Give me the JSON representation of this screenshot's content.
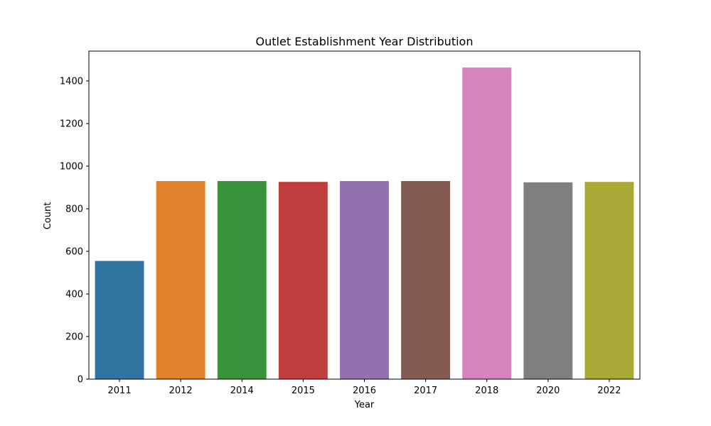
{
  "chart_data": {
    "type": "bar",
    "title": "Outlet Establishment Year Distribution",
    "xlabel": "Year",
    "ylabel": "Count",
    "categories": [
      "2011",
      "2012",
      "2014",
      "2015",
      "2016",
      "2017",
      "2018",
      "2020",
      "2022"
    ],
    "values": [
      555,
      930,
      930,
      926,
      930,
      930,
      1463,
      924,
      926
    ],
    "colors": [
      "#3274a1",
      "#e1812c",
      "#3a923a",
      "#c03d3e",
      "#9372b2",
      "#845b53",
      "#d684bd",
      "#7f7f7f",
      "#a9aa35"
    ],
    "ylim": [
      0,
      1540
    ],
    "yticks": [
      0,
      200,
      400,
      600,
      800,
      1000,
      1200,
      1400
    ],
    "grid": false,
    "legend": "none"
  }
}
